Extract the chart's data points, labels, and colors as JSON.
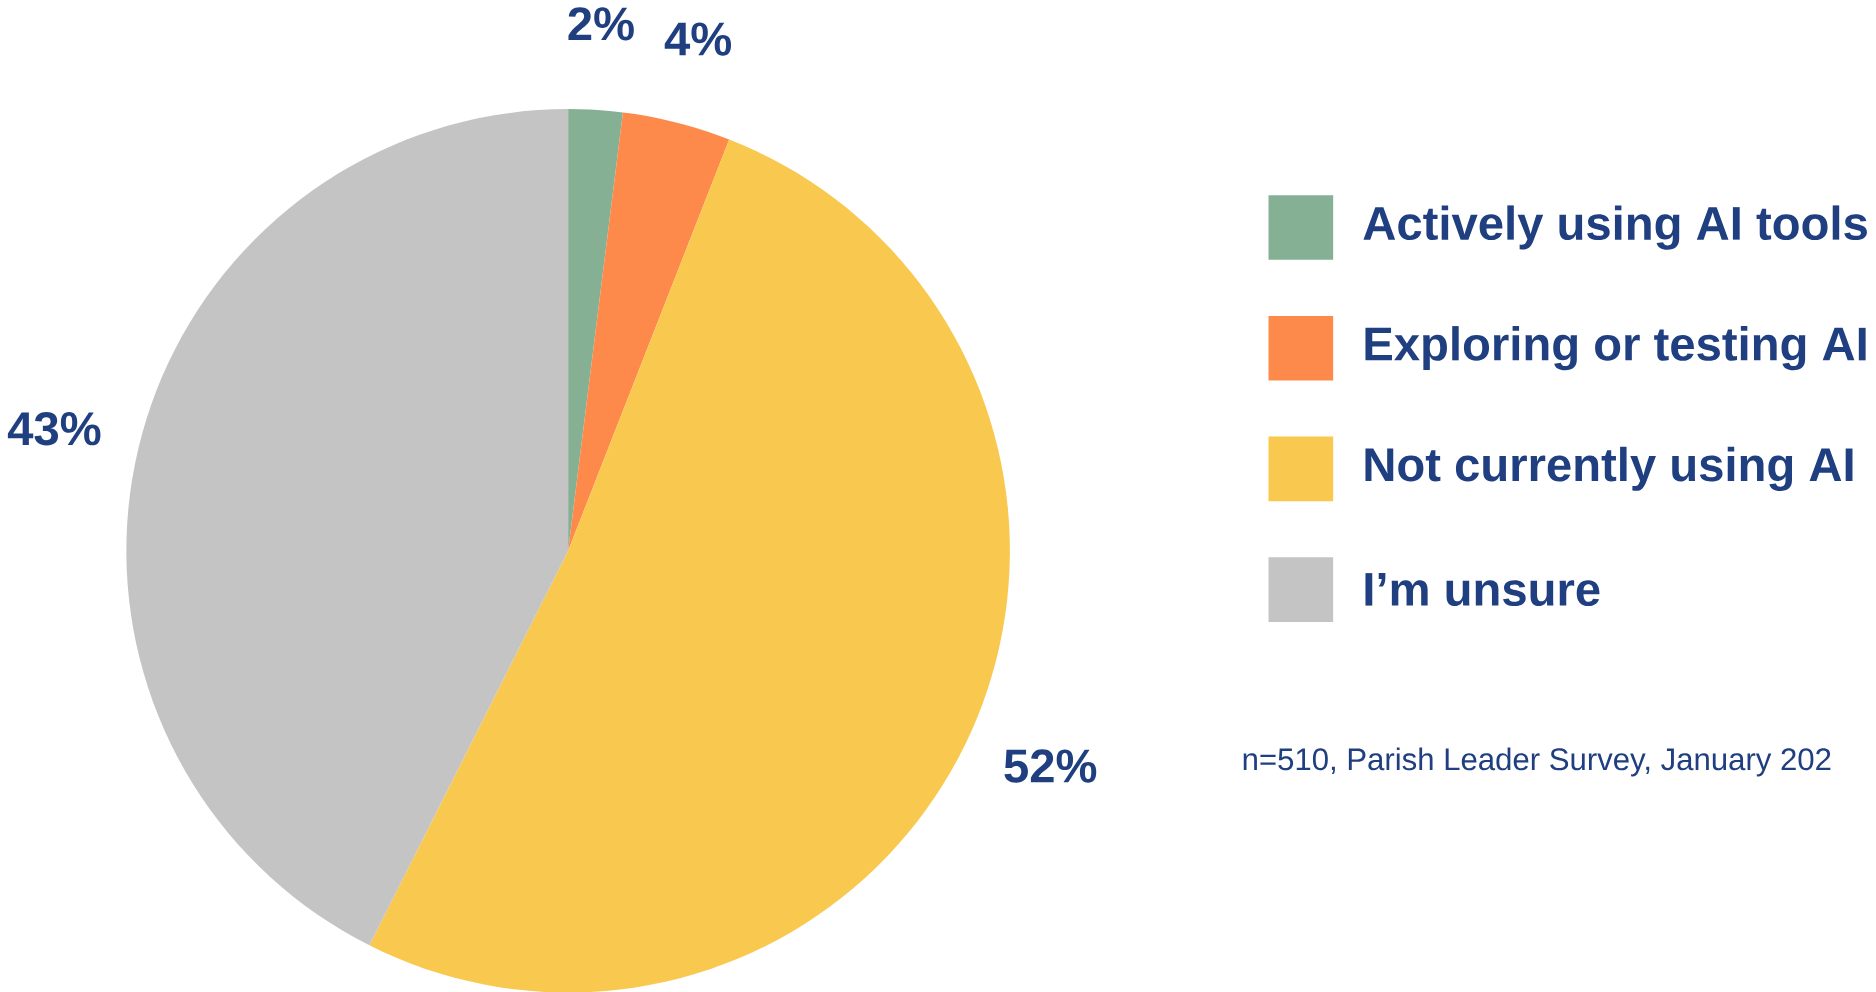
{
  "chart_data": {
    "type": "pie",
    "categories": [
      "Actively using AI tools",
      "Exploring or testing AI",
      "Not currently using AI",
      "I’m unsure"
    ],
    "values": [
      2,
      4,
      52,
      43
    ],
    "colors": [
      "#85b094",
      "#fd8a4b",
      "#f8c84f",
      "#c4c4c4"
    ],
    "value_labels": [
      "2%",
      "4%",
      "52%",
      "43%"
    ],
    "legend": "right",
    "annotations": [
      "n=510, Parish Leader Survey, January 202"
    ]
  }
}
